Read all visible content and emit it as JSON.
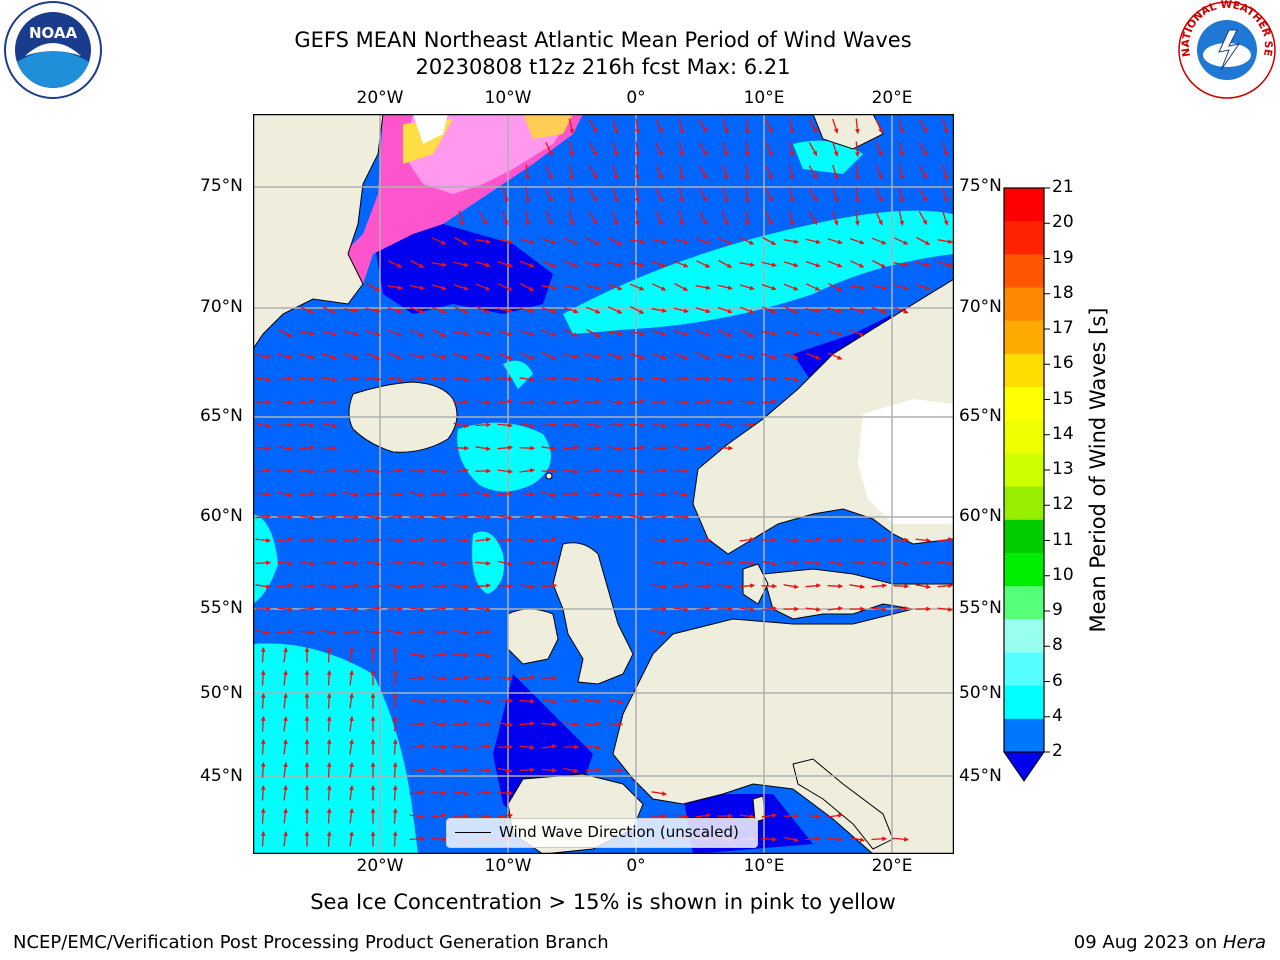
{
  "header": {
    "title_line1": "GEFS MEAN Northeast Atlantic Mean Period of Wind Waves",
    "title_line2": "20230808 t12z 216h fcst   Max: 6.21"
  },
  "map": {
    "projection": "lat-lon",
    "lon_range": [
      -30,
      25
    ],
    "lat_range": [
      41,
      78
    ],
    "lat_ticks": [
      "75°N",
      "70°N",
      "65°N",
      "60°N",
      "55°N",
      "50°N",
      "45°N"
    ],
    "lon_ticks": [
      "20°W",
      "10°W",
      "0°",
      "10°E",
      "20°E"
    ],
    "colors": {
      "ocean_base": "#0066ff",
      "ocean_low": "#0000ee",
      "band_4_6": "#00ffff",
      "band_6_8": "#55ffff",
      "land": "#efeedd",
      "arrows": "#ee1111",
      "grid": "#b0b0b0"
    },
    "legend_label": "Wind Wave Direction (unscaled)",
    "sea_ice_note": "Sea Ice Concentration > 15% is shown in pink to yellow"
  },
  "colorbar": {
    "label": "Mean Period of Wind Waves [s]",
    "ticks": [
      "21",
      "20",
      "19",
      "18",
      "17",
      "16",
      "15",
      "14",
      "13",
      "12",
      "11",
      "10",
      "9",
      "8",
      "6",
      "4",
      "2"
    ],
    "colors": [
      "#ff0000",
      "#ff2200",
      "#ff5500",
      "#ff8800",
      "#ffaa00",
      "#ffdd00",
      "#ffff00",
      "#eeff00",
      "#ccff00",
      "#99ee00",
      "#00cc00",
      "#00ee00",
      "#55ff77",
      "#99ffee",
      "#55ffff",
      "#00ffff",
      "#0077ff"
    ],
    "under_color": "#0000ee"
  },
  "logos": {
    "left": "NOAA",
    "right_text": "NATIONAL WEATHER SERVICE"
  },
  "footer": {
    "left": "NCEP/EMC/Verification Post Processing Product Generation Branch",
    "right_prefix": "09 Aug 2023 on ",
    "right_host": "Hera"
  }
}
